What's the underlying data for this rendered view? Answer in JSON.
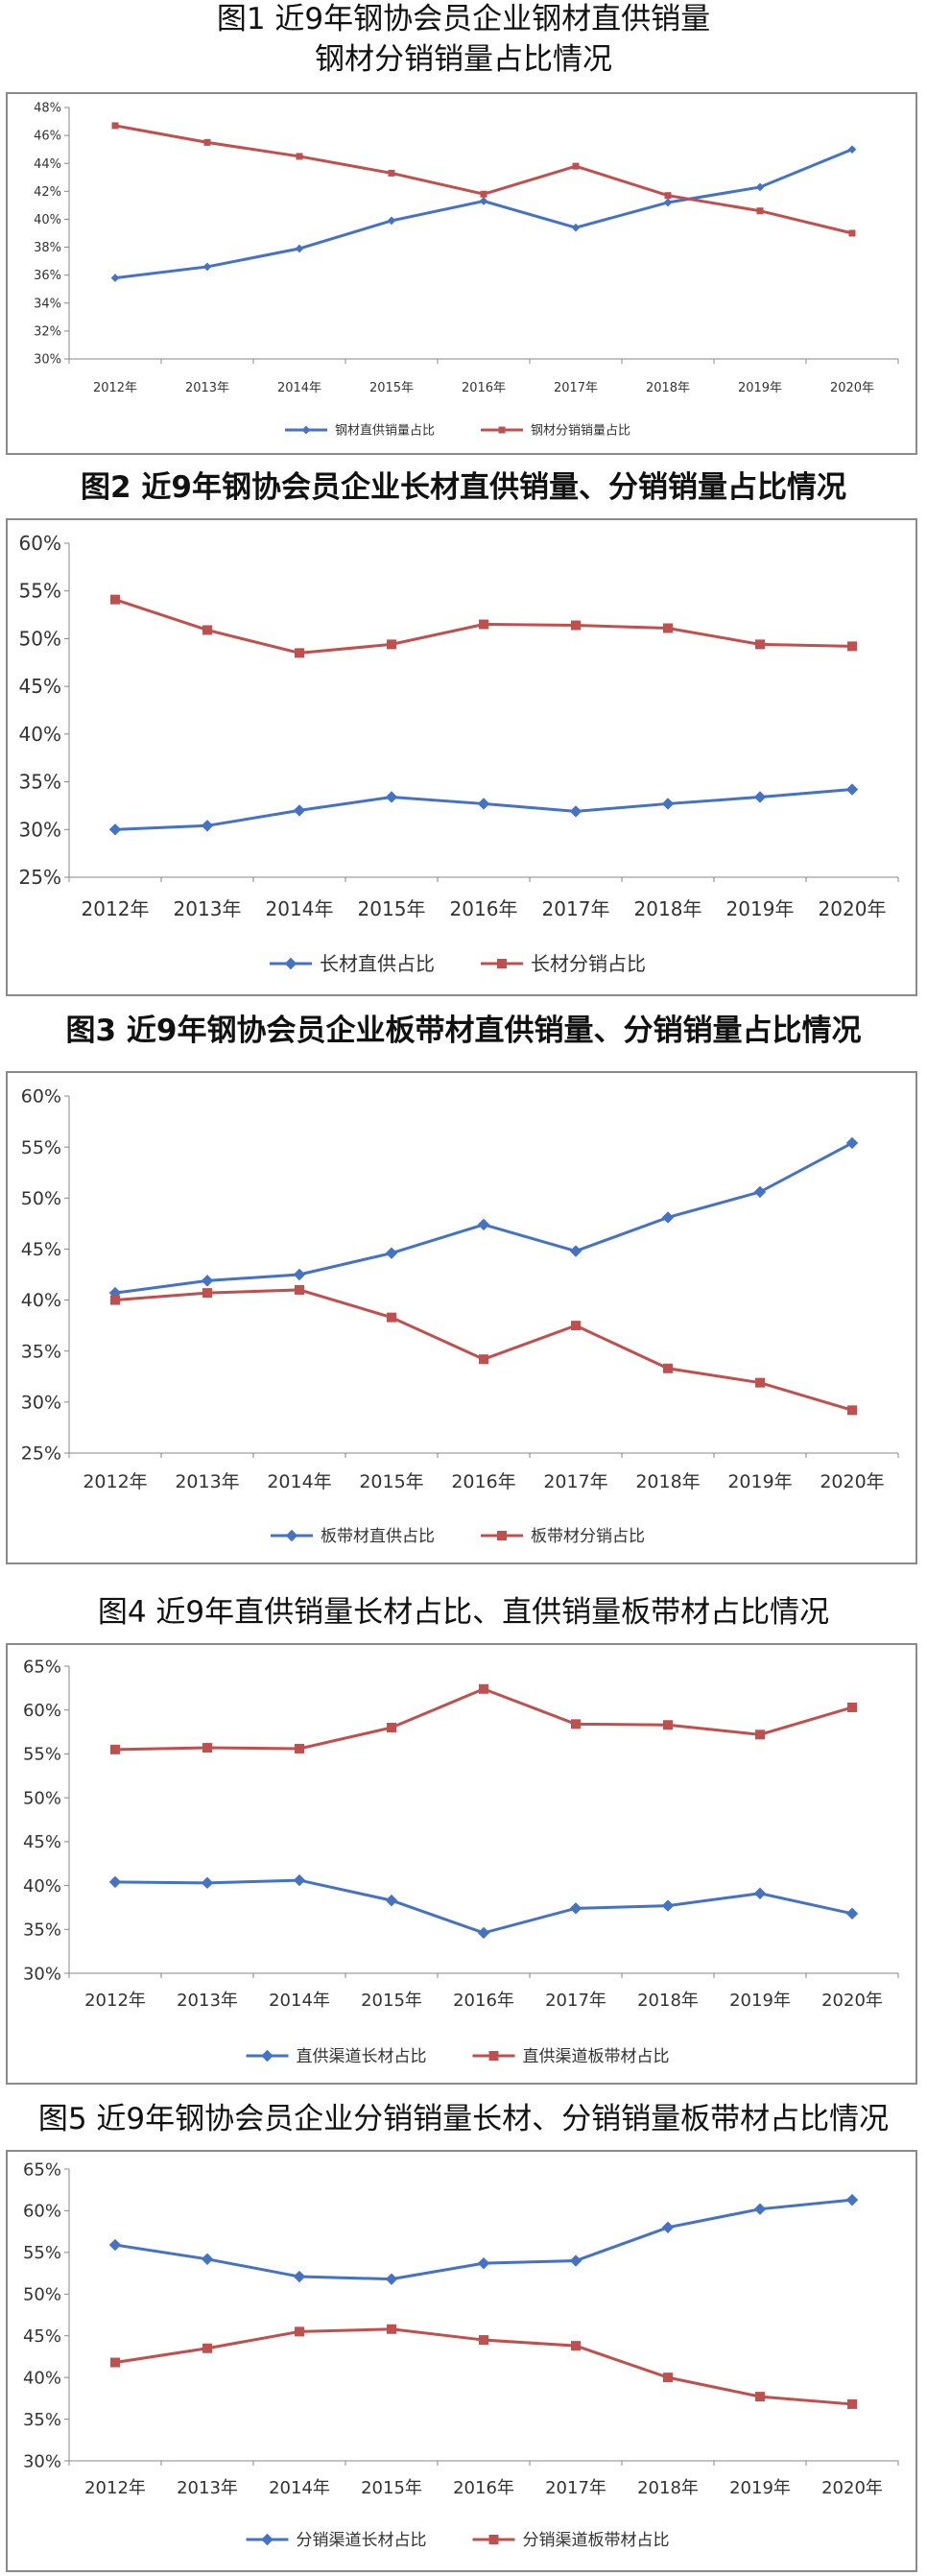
{
  "chart_data": [
    {
      "type": "line",
      "title_lines": [
        "图1 近9年钢协会员企业钢材直供销量",
        "钢材分销销量占比情况"
      ],
      "categories": [
        "2012年",
        "2013年",
        "2014年",
        "2015年",
        "2016年",
        "2017年",
        "2018年",
        "2019年",
        "2020年"
      ],
      "ylim": [
        30,
        48
      ],
      "yticks": [
        30,
        32,
        34,
        36,
        38,
        40,
        42,
        44,
        46,
        48
      ],
      "ytick_labels": [
        "30%",
        "32%",
        "34%",
        "36%",
        "38%",
        "40%",
        "42%",
        "44%",
        "46%",
        "48%"
      ],
      "series": [
        {
          "name": "钢材直供销量占比",
          "color": "#4472c4",
          "marker": "diamond",
          "values": [
            35.8,
            36.6,
            37.9,
            39.9,
            41.3,
            39.4,
            41.2,
            42.3,
            45.0
          ]
        },
        {
          "name": "钢材分销销量占比",
          "color": "#c0504d",
          "marker": "square",
          "values": [
            46.7,
            45.5,
            44.5,
            43.3,
            41.8,
            43.8,
            41.7,
            40.6,
            39.0
          ]
        }
      ],
      "legend": "bottom"
    },
    {
      "type": "line",
      "title_lines": [
        "图2 近9年钢协会员企业长材直供销量、分销销量占比情况"
      ],
      "categories": [
        "2012年",
        "2013年",
        "2014年",
        "2015年",
        "2016年",
        "2017年",
        "2018年",
        "2019年",
        "2020年"
      ],
      "ylim": [
        25,
        60
      ],
      "yticks": [
        25,
        30,
        35,
        40,
        45,
        50,
        55,
        60
      ],
      "ytick_labels": [
        "25%",
        "30%",
        "35%",
        "40%",
        "45%",
        "50%",
        "55%",
        "60%"
      ],
      "series": [
        {
          "name": "长材直供占比",
          "color": "#4472c4",
          "marker": "diamond",
          "values": [
            30.0,
            30.4,
            32.0,
            33.4,
            32.7,
            31.9,
            32.7,
            33.4,
            34.2
          ]
        },
        {
          "name": "长材分销占比",
          "color": "#c0504d",
          "marker": "square",
          "values": [
            54.1,
            50.9,
            48.5,
            49.4,
            51.5,
            51.4,
            51.1,
            49.4,
            49.2
          ]
        }
      ],
      "legend": "bottom"
    },
    {
      "type": "line",
      "title_lines": [
        "图3 近9年钢协会员企业板带材直供销量、分销销量占比情况"
      ],
      "categories": [
        "2012年",
        "2013年",
        "2014年",
        "2015年",
        "2016年",
        "2017年",
        "2018年",
        "2019年",
        "2020年"
      ],
      "ylim": [
        25,
        60
      ],
      "yticks": [
        25,
        30,
        35,
        40,
        45,
        50,
        55,
        60
      ],
      "ytick_labels": [
        "25%",
        "30%",
        "35%",
        "40%",
        "45%",
        "50%",
        "55%",
        "60%"
      ],
      "series": [
        {
          "name": "板带材直供占比",
          "color": "#4472c4",
          "marker": "diamond",
          "values": [
            40.7,
            41.9,
            42.5,
            44.6,
            47.4,
            44.8,
            48.1,
            50.6,
            55.4
          ]
        },
        {
          "name": "板带材分销占比",
          "color": "#c0504d",
          "marker": "square",
          "values": [
            40.0,
            40.7,
            41.0,
            38.3,
            34.2,
            37.5,
            33.3,
            31.9,
            29.2
          ]
        }
      ],
      "legend": "bottom"
    },
    {
      "type": "line",
      "title_lines": [
        "图4 近9年直供销量长材占比、直供销量板带材占比情况"
      ],
      "categories": [
        "2012年",
        "2013年",
        "2014年",
        "2015年",
        "2016年",
        "2017年",
        "2018年",
        "2019年",
        "2020年"
      ],
      "ylim": [
        30,
        65
      ],
      "yticks": [
        30,
        35,
        40,
        45,
        50,
        55,
        60,
        65
      ],
      "ytick_labels": [
        "30%",
        "35%",
        "40%",
        "45%",
        "50%",
        "55%",
        "60%",
        "65%"
      ],
      "series": [
        {
          "name": "直供渠道长材占比",
          "color": "#4472c4",
          "marker": "diamond",
          "values": [
            40.4,
            40.3,
            40.6,
            38.3,
            34.6,
            37.4,
            37.7,
            39.1,
            36.8
          ]
        },
        {
          "name": "直供渠道板带材占比",
          "color": "#c0504d",
          "marker": "square",
          "values": [
            55.5,
            55.7,
            55.6,
            58.0,
            62.4,
            58.4,
            58.3,
            57.2,
            60.3
          ]
        }
      ],
      "legend": "bottom"
    },
    {
      "type": "line",
      "title_lines": [
        "图5 近9年钢协会员企业分销销量长材、分销销量板带材占比情况"
      ],
      "categories": [
        "2012年",
        "2013年",
        "2014年",
        "2015年",
        "2016年",
        "2017年",
        "2018年",
        "2019年",
        "2020年"
      ],
      "ylim": [
        30,
        65
      ],
      "yticks": [
        30,
        35,
        40,
        45,
        50,
        55,
        60,
        65
      ],
      "ytick_labels": [
        "30%",
        "35%",
        "40%",
        "45%",
        "50%",
        "55%",
        "60%",
        "65%"
      ],
      "series": [
        {
          "name": "分销渠道长材占比",
          "color": "#4472c4",
          "marker": "diamond",
          "values": [
            55.9,
            54.2,
            52.1,
            51.8,
            53.7,
            54.0,
            58.0,
            60.2,
            61.3
          ]
        },
        {
          "name": "分销渠道板带材占比",
          "color": "#c0504d",
          "marker": "square",
          "values": [
            41.8,
            43.5,
            45.5,
            45.8,
            44.5,
            43.8,
            40.0,
            37.7,
            36.8
          ]
        }
      ],
      "legend": "bottom"
    }
  ]
}
